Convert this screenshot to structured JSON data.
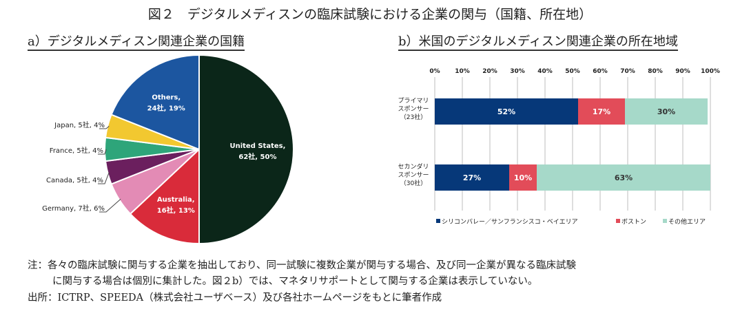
{
  "title": "図２　デジタルメディスンの臨床試験における企業の関与（国籍、所在地）",
  "chart_data": [
    {
      "type": "pie",
      "title": "a）デジタルメディスン関連企業の国籍",
      "slices": [
        {
          "label": "United States,",
          "detail": "62社, 50%",
          "count": 62,
          "percent": 50,
          "color": "#0b2619",
          "inside": true,
          "textColor": "#ffffff"
        },
        {
          "label": "Australia,",
          "detail": "16社, 13%",
          "count": 16,
          "percent": 13,
          "color": "#d92b3a",
          "inside": true,
          "textColor": "#ffffff"
        },
        {
          "label": "Germany, 7社, 6%",
          "count": 7,
          "percent": 6,
          "color": "#e38bb5",
          "inside": false
        },
        {
          "label": "Canada, 5社, 4%",
          "count": 5,
          "percent": 4,
          "color": "#6b1f5e",
          "inside": false
        },
        {
          "label": "France, 5社, 4%",
          "count": 5,
          "percent": 4,
          "color": "#2ea57a",
          "inside": false
        },
        {
          "label": "Japan, 5社, 4%",
          "count": 5,
          "percent": 4,
          "color": "#f2c830",
          "inside": false
        },
        {
          "label": "Others,",
          "detail": "24社, 19%",
          "count": 24,
          "percent": 19,
          "color": "#1c56a0",
          "inside": true,
          "textColor": "#ffffff"
        }
      ]
    },
    {
      "type": "bar",
      "orientation": "horizontal-stacked-100",
      "title": "b）米国のデジタルメディスン関連企業の所在地域",
      "xlim": [
        0,
        100
      ],
      "xticks": [
        "0%",
        "10%",
        "20%",
        "30%",
        "40%",
        "50%",
        "60%",
        "70%",
        "80%",
        "90%",
        "100%"
      ],
      "grid": true,
      "legend_position": "bottom",
      "categories": [
        [
          "プライマリ",
          "スポンサー",
          "（23社）"
        ],
        [
          "セカンダリ",
          "スポンサー",
          "（30社）"
        ]
      ],
      "series": [
        {
          "name": "シリコンバレー／サンフランシスコ・ベイエリア",
          "values": [
            52,
            27
          ],
          "labels": [
            "52%",
            "27%"
          ],
          "color": "#063879",
          "textColor": "#ffffff"
        },
        {
          "name": "ボストン",
          "values": [
            17,
            10
          ],
          "labels": [
            "17%",
            "10%"
          ],
          "color": "#e24c59",
          "textColor": "#ffffff"
        },
        {
          "name": "その他エリア",
          "values": [
            30,
            63
          ],
          "labels": [
            "30%",
            "63%"
          ],
          "color": "#a6d9c9",
          "textColor": "#333333"
        }
      ]
    }
  ],
  "notes": {
    "line1": "注：各々の臨床試験に関与する企業を抽出しており、同一試験に複数企業が関与する場合、及び同一企業が異なる臨床試験",
    "line2": "に関与する場合は個別に集計した。図２b）では、マネタリサポートとして関与する企業は表示していない。",
    "source": "出所：ICTRP、SPEEDA（株式会社ユーザベース）及び各社ホームページをもとに筆者作成"
  }
}
